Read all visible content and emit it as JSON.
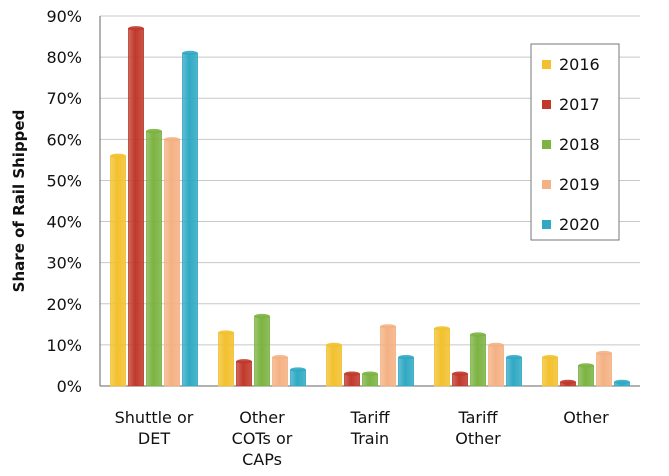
{
  "chart_data": {
    "type": "bar",
    "title": "",
    "xlabel": "",
    "ylabel": "Share of Rail Shipped",
    "ylim": [
      0,
      90
    ],
    "yticks": [
      "0%",
      "10%",
      "20%",
      "30%",
      "40%",
      "50%",
      "60%",
      "70%",
      "80%",
      "90%"
    ],
    "categories": [
      [
        "Shuttle or",
        "DET"
      ],
      [
        "Other",
        "COTs or",
        "CAPs"
      ],
      [
        "Tariff",
        "Train"
      ],
      [
        "Tariff",
        "Other"
      ],
      [
        "Other"
      ]
    ],
    "series": [
      {
        "name": "2016",
        "color": "#f2c12e",
        "values": [
          56,
          13,
          10,
          14,
          7
        ]
      },
      {
        "name": "2017",
        "color": "#c0392b",
        "values": [
          87,
          6,
          3,
          3,
          1
        ]
      },
      {
        "name": "2018",
        "color": "#7cb342",
        "values": [
          62,
          17,
          3,
          12.5,
          5
        ]
      },
      {
        "name": "2019",
        "color": "#f4b183",
        "values": [
          60,
          7,
          14.5,
          10,
          8
        ]
      },
      {
        "name": "2020",
        "color": "#31a9c4",
        "values": [
          81,
          4,
          7,
          7,
          1
        ]
      }
    ],
    "grid": true,
    "legend": "top-right"
  }
}
